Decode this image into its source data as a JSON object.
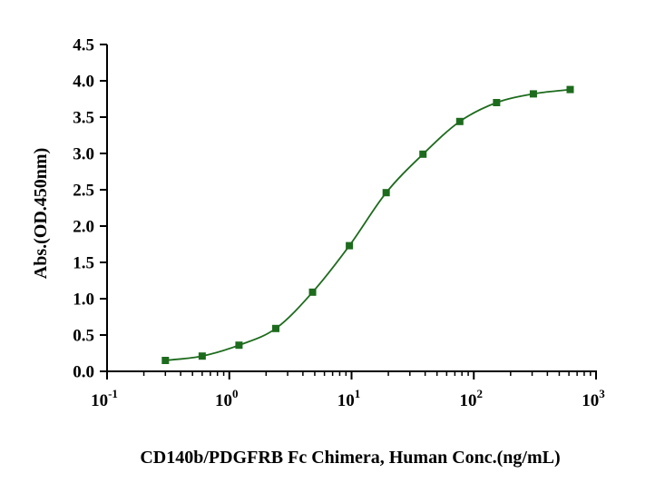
{
  "chart_data": {
    "type": "scatter",
    "title": "",
    "xlabel": "CD140b/PDGFRB Fc Chimera, Human Conc.(ng/mL)",
    "ylabel": "Abs.(OD.450nm)",
    "xscale": "log",
    "xlim": [
      0.1,
      1000
    ],
    "ylim": [
      0,
      4.5
    ],
    "x_ticks": [
      {
        "value": 0.1,
        "base": "10",
        "exp": "-1"
      },
      {
        "value": 1,
        "base": "10",
        "exp": "0"
      },
      {
        "value": 10,
        "base": "10",
        "exp": "1"
      },
      {
        "value": 100,
        "base": "10",
        "exp": "2"
      },
      {
        "value": 1000,
        "base": "10",
        "exp": "3"
      }
    ],
    "y_ticks": [
      "0.0",
      "0.5",
      "1.0",
      "1.5",
      "2.0",
      "2.5",
      "3.0",
      "3.5",
      "4.0",
      "4.5"
    ],
    "grid": false,
    "color": "#1d6b1d",
    "marker": "square",
    "fit_curve": "sigmoidal",
    "series": [
      {
        "x": [
          0.3,
          0.6,
          1.2,
          2.4,
          4.8,
          9.6,
          19.2,
          38.4,
          76.8,
          153.6,
          307.2,
          614.4
        ],
        "y": [
          0.15,
          0.21,
          0.36,
          0.59,
          1.09,
          1.73,
          2.46,
          2.99,
          3.44,
          3.7,
          3.82,
          3.88
        ]
      }
    ]
  }
}
